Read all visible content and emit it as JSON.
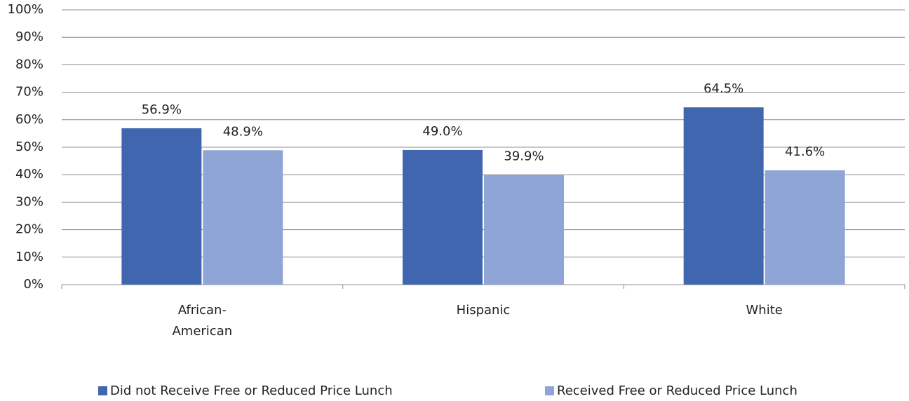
{
  "chart_data": {
    "type": "bar",
    "categories": [
      "African-American",
      "Hispanic",
      "White"
    ],
    "series": [
      {
        "name": "Did not Receive Free or Reduced Price Lunch",
        "color": "#3f66ae",
        "values": [
          56.9,
          49.0,
          64.5
        ],
        "value_labels": [
          "56.9%",
          "49.0%",
          "64.5%"
        ]
      },
      {
        "name": "Received Free or Reduced Price Lunch",
        "color": "#8fa5d5",
        "values": [
          48.9,
          39.9,
          41.6
        ],
        "value_labels": [
          "48.9%",
          "39.9%",
          "41.6%"
        ]
      }
    ],
    "ylim": [
      0,
      100
    ],
    "yticks": [
      {
        "value": 0,
        "label": "0%"
      },
      {
        "value": 10,
        "label": "10%"
      },
      {
        "value": 20,
        "label": "20%"
      },
      {
        "value": 30,
        "label": "30%"
      },
      {
        "value": 40,
        "label": "40%"
      },
      {
        "value": 50,
        "label": "50%"
      },
      {
        "value": 60,
        "label": "60%"
      },
      {
        "value": 70,
        "label": "70%"
      },
      {
        "value": 80,
        "label": "80%"
      },
      {
        "value": 90,
        "label": "90%"
      },
      {
        "value": 100,
        "label": "100%"
      }
    ],
    "grid": true,
    "legend": "bottom"
  }
}
